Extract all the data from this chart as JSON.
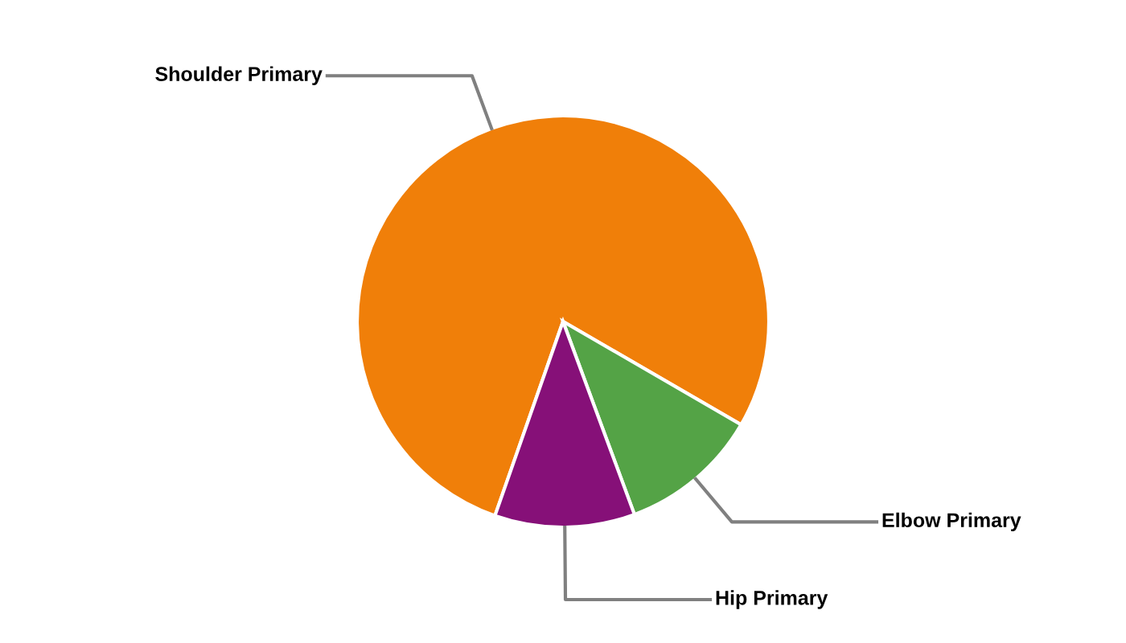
{
  "chart_data": {
    "type": "pie",
    "categories": [
      "Shoulder Primary",
      "Elbow Primary",
      "Hip Primary"
    ],
    "values": [
      78,
      11,
      11
    ],
    "colors": [
      "#f07f09",
      "#54a346",
      "#861078"
    ],
    "legend": false
  }
}
